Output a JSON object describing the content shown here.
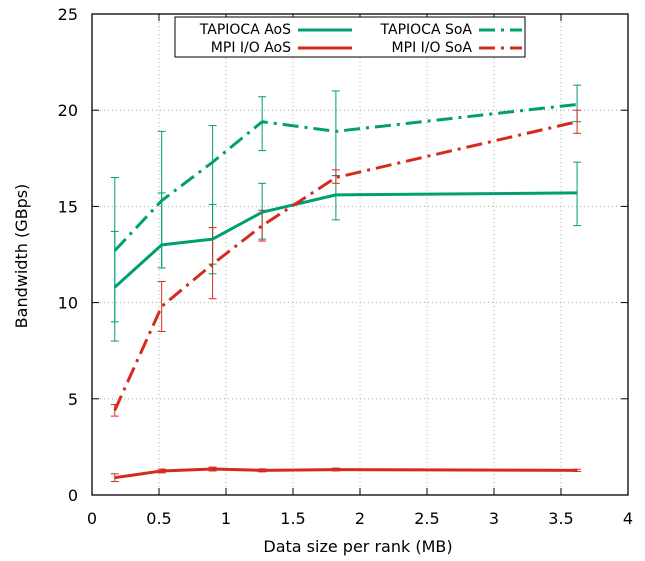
{
  "chart_data": {
    "type": "line",
    "xlabel": "Data size per rank (MB)",
    "ylabel": "Bandwidth (GBps)",
    "xlim": [
      0,
      4
    ],
    "ylim": [
      0,
      25
    ],
    "xticks": [
      0,
      0.5,
      1,
      1.5,
      2,
      2.5,
      3,
      3.5,
      4
    ],
    "xtick_labels": [
      "0",
      "0.5",
      "1",
      "1.5",
      "2",
      "2.5",
      "3",
      "3.5",
      "4"
    ],
    "yticks": [
      0,
      5,
      10,
      15,
      20,
      25
    ],
    "ytick_labels": [
      "0",
      "5",
      "10",
      "15",
      "20",
      "25"
    ],
    "grid": true,
    "legend_position": "top",
    "series": [
      {
        "name": "TAPIOCA AoS",
        "color": "#009e73",
        "style": "solid",
        "x": [
          0.17,
          0.52,
          0.9,
          1.27,
          1.82,
          3.62
        ],
        "y": [
          10.8,
          13.0,
          13.3,
          14.7,
          15.6,
          15.7
        ],
        "err_low": [
          8.0,
          11.8,
          11.5,
          13.3,
          14.3,
          14.0
        ],
        "err_high": [
          13.7,
          15.7,
          15.1,
          16.2,
          16.6,
          17.3
        ]
      },
      {
        "name": "TAPIOCA SoA",
        "color": "#009e73",
        "style": "dashdot",
        "x": [
          0.17,
          0.52,
          0.9,
          1.27,
          1.82,
          3.62
        ],
        "y": [
          12.7,
          15.3,
          17.3,
          19.4,
          18.9,
          20.3
        ],
        "err_low": [
          9.0,
          11.8,
          12.0,
          17.9,
          16.6,
          19.4
        ],
        "err_high": [
          16.5,
          18.9,
          19.2,
          20.7,
          21.0,
          21.3
        ]
      },
      {
        "name": "MPI I/O AoS",
        "color": "#d62a1e",
        "style": "solid",
        "x": [
          0.17,
          0.52,
          0.9,
          1.27,
          1.82,
          3.62
        ],
        "y": [
          0.9,
          1.25,
          1.35,
          1.28,
          1.32,
          1.28
        ],
        "err_low": [
          0.7,
          1.15,
          1.25,
          1.2,
          1.25,
          1.22
        ],
        "err_high": [
          1.1,
          1.35,
          1.45,
          1.36,
          1.4,
          1.34
        ]
      },
      {
        "name": "MPI I/O SoA",
        "color": "#d62a1e",
        "style": "dashdot",
        "x": [
          0.17,
          0.52,
          0.9,
          1.27,
          1.82,
          3.62
        ],
        "y": [
          4.4,
          9.8,
          12.0,
          14.0,
          16.5,
          19.4
        ],
        "err_low": [
          4.1,
          8.5,
          10.2,
          13.2,
          16.2,
          18.8
        ],
        "err_high": [
          4.7,
          11.1,
          13.9,
          14.8,
          16.9,
          20.0
        ]
      }
    ]
  }
}
